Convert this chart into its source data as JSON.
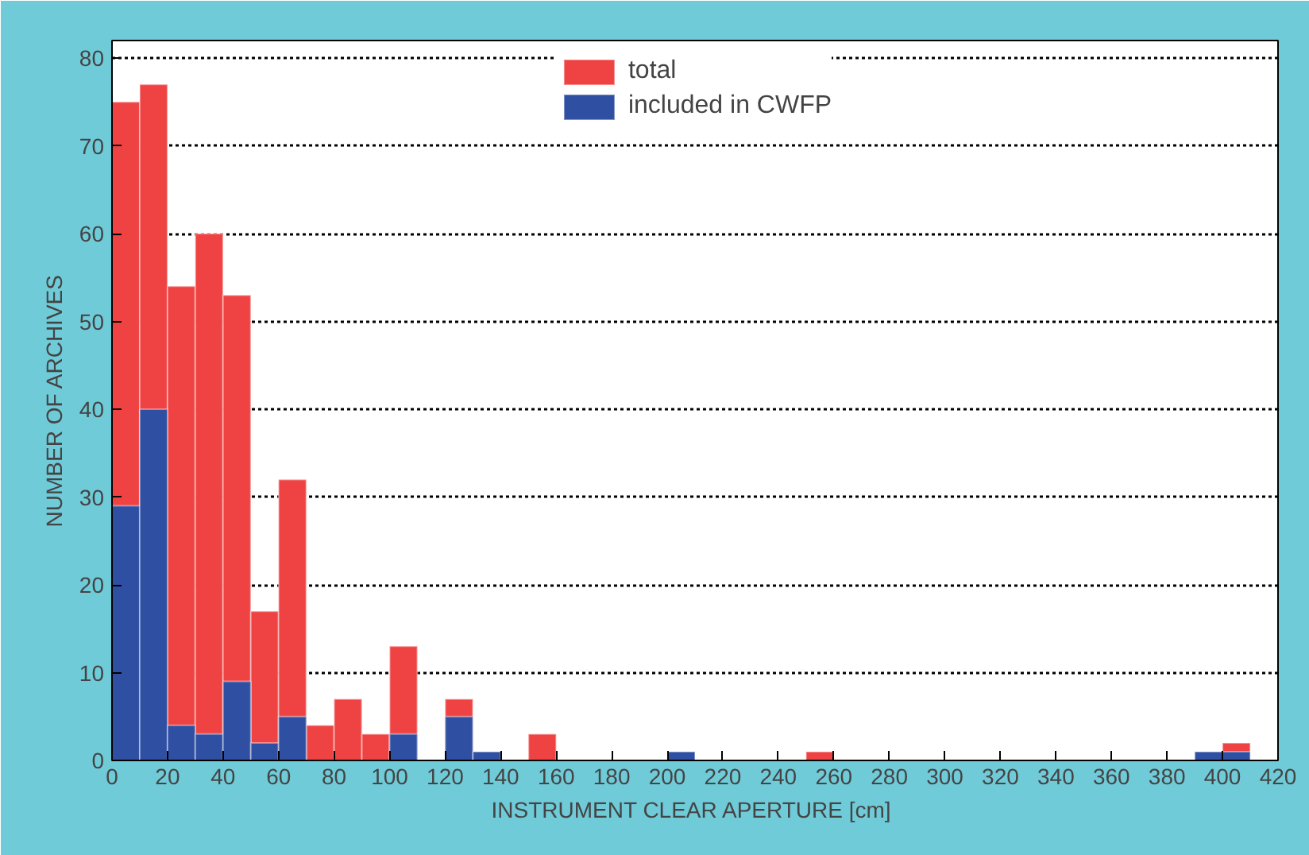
{
  "chart_data": {
    "type": "histogram",
    "xlabel": "INSTRUMENT CLEAR APERTURE  [cm]",
    "ylabel": "NUMBER OF ARCHIVES",
    "bins": [
      0,
      10,
      20,
      30,
      40,
      50,
      60,
      70,
      80,
      90,
      100,
      110,
      120,
      130,
      140,
      150,
      160,
      170,
      180,
      190,
      200,
      210,
      220,
      230,
      240,
      250,
      260,
      270,
      280,
      290,
      300,
      310,
      320,
      330,
      340,
      350,
      360,
      370,
      380,
      390,
      400,
      410
    ],
    "series": [
      {
        "name": "total",
        "color": "#ef4343",
        "values": [
          75,
          77,
          54,
          60,
          53,
          17,
          32,
          4,
          7,
          3,
          13,
          0,
          7,
          null,
          0,
          3,
          0,
          0,
          0,
          0,
          null,
          0,
          0,
          0,
          0,
          1,
          0,
          0,
          0,
          0,
          0,
          0,
          0,
          0,
          0,
          0,
          0,
          0,
          0,
          null,
          2
        ]
      },
      {
        "name": "included in CWFP",
        "color": "#2f4fa2",
        "values": [
          29,
          40,
          4,
          3,
          9,
          2,
          5,
          0,
          0,
          0,
          3,
          0,
          5,
          1,
          0,
          0,
          0,
          0,
          0,
          0,
          1,
          0,
          0,
          0,
          0,
          0,
          0,
          0,
          0,
          0,
          0,
          0,
          0,
          0,
          0,
          0,
          0,
          0,
          0,
          1,
          1
        ]
      }
    ],
    "xlim": [
      0,
      420
    ],
    "xticks": [
      0,
      20,
      40,
      60,
      80,
      100,
      120,
      140,
      160,
      180,
      200,
      220,
      240,
      260,
      280,
      300,
      320,
      340,
      360,
      380,
      400,
      420
    ],
    "ylim": [
      0,
      82
    ],
    "yticks": [
      0,
      10,
      20,
      30,
      40,
      50,
      60,
      70,
      80
    ],
    "grid": "y",
    "legend": "top"
  }
}
